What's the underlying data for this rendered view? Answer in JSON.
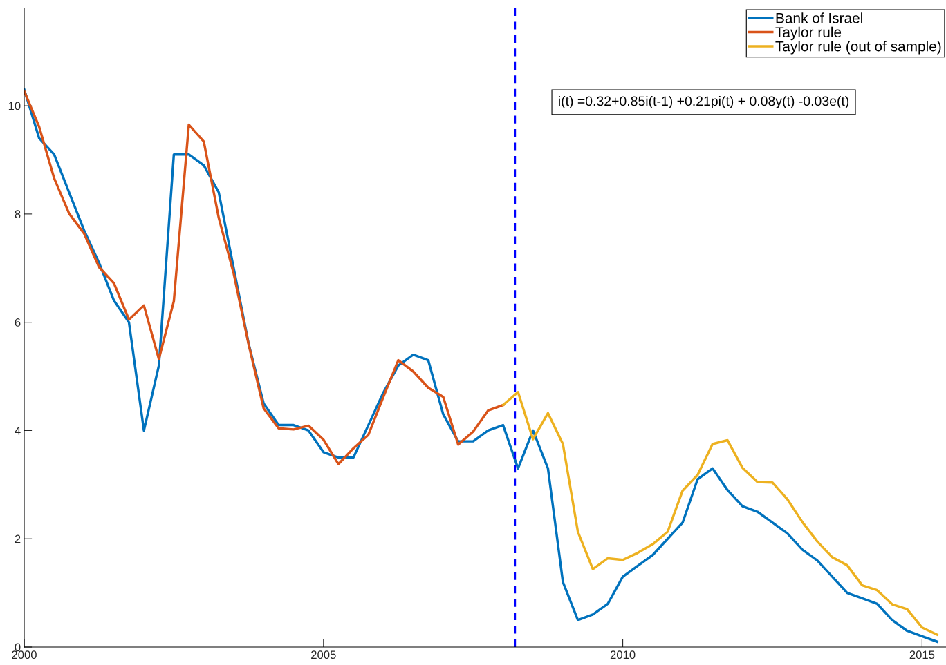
{
  "chart_data": {
    "type": "line",
    "xlim": [
      2000,
      2015.4
    ],
    "ylim": [
      0,
      11.8
    ],
    "xticks": [
      2000,
      2005,
      2010,
      2015
    ],
    "yticks": [
      0,
      2,
      4,
      6,
      8,
      10
    ],
    "grid": false,
    "legend": "top right",
    "line_style": "solid",
    "marker": "none",
    "series": [
      {
        "name": "Bank of Israel",
        "color": "#0072bd",
        "x": [
          2000,
          2000.25,
          2000.5,
          2000.75,
          2001,
          2001.25,
          2001.5,
          2001.75,
          2002,
          2002.25,
          2002.5,
          2002.75,
          2003,
          2003.25,
          2003.5,
          2003.75,
          2004,
          2004.25,
          2004.5,
          2004.75,
          2005,
          2005.25,
          2005.5,
          2005.75,
          2006,
          2006.25,
          2006.5,
          2006.75,
          2007,
          2007.25,
          2007.5,
          2007.75,
          2008,
          2008.25,
          2008.5,
          2008.75,
          2009,
          2009.25,
          2009.5,
          2009.75,
          2010,
          2010.25,
          2010.5,
          2010.75,
          2011,
          2011.25,
          2011.5,
          2011.75,
          2012,
          2012.25,
          2012.5,
          2012.75,
          2013,
          2013.25,
          2013.5,
          2013.75,
          2014,
          2014.25,
          2014.5,
          2014.75,
          2015,
          2015.25
        ],
        "values": [
          10.3,
          9.4,
          9.1,
          8.4,
          7.7,
          7.1,
          6.4,
          6.0,
          4.0,
          5.2,
          9.1,
          9.1,
          8.9,
          8.4,
          7.0,
          5.6,
          4.5,
          4.1,
          4.1,
          4.0,
          3.6,
          3.5,
          3.5,
          4.1,
          4.7,
          5.2,
          5.4,
          5.3,
          4.3,
          3.8,
          3.8,
          4.0,
          4.1,
          3.3,
          4.0,
          3.3,
          1.2,
          0.5,
          0.6,
          0.8,
          1.3,
          1.5,
          1.7,
          2.0,
          2.3,
          3.1,
          3.3,
          2.9,
          2.6,
          2.5,
          2.3,
          2.1,
          1.8,
          1.6,
          1.3,
          1.0,
          0.9,
          0.8,
          0.5,
          0.3,
          0.2,
          0.1
        ]
      },
      {
        "name": "Taylor rule",
        "color": "#d95319",
        "x": [
          2000,
          2000.25,
          2000.5,
          2000.75,
          2001,
          2001.25,
          2001.5,
          2001.75,
          2002,
          2002.25,
          2002.5,
          2002.75,
          2003,
          2003.25,
          2003.5,
          2003.75,
          2004,
          2004.25,
          2004.5,
          2004.75,
          2005,
          2005.25,
          2005.5,
          2005.75,
          2006,
          2006.25,
          2006.5,
          2006.75,
          2007,
          2007.25,
          2007.5,
          2007.75,
          2008
        ],
        "values": [
          10.27,
          9.61,
          8.66,
          8.01,
          7.64,
          7.02,
          6.72,
          6.05,
          6.31,
          5.32,
          6.39,
          9.65,
          9.34,
          7.93,
          6.9,
          5.59,
          4.41,
          4.04,
          4.02,
          4.09,
          3.83,
          3.38,
          3.67,
          3.92,
          4.62,
          5.3,
          5.09,
          4.79,
          4.62,
          3.74,
          3.98,
          4.37,
          4.47
        ]
      },
      {
        "name": "Taylor rule (out of sample)",
        "color": "#edb120",
        "x": [
          2008,
          2008.25,
          2008.5,
          2008.75,
          2009,
          2009.25,
          2009.5,
          2009.75,
          2010,
          2010.25,
          2010.5,
          2010.75,
          2011,
          2011.25,
          2011.5,
          2011.75,
          2012,
          2012.25,
          2012.5,
          2012.75,
          2013,
          2013.25,
          2013.5,
          2013.75,
          2014,
          2014.25,
          2014.5,
          2014.75,
          2015,
          2015.25
        ],
        "values": [
          4.47,
          4.71,
          3.84,
          4.32,
          3.75,
          2.13,
          1.44,
          1.64,
          1.61,
          1.74,
          1.9,
          2.13,
          2.89,
          3.18,
          3.75,
          3.82,
          3.31,
          3.05,
          3.04,
          2.73,
          2.31,
          1.95,
          1.66,
          1.51,
          1.14,
          1.05,
          0.79,
          0.7,
          0.36,
          0.23
        ]
      }
    ],
    "ref_lines": [
      {
        "axis": "x",
        "value": 2008.2,
        "color": "#0000ff",
        "line_style": "dashed"
      }
    ],
    "annotations": [
      "i(t) =0.32+0.85i(t-1) +0.21pi(t) + 0.08y(t) -0.03e(t)"
    ]
  }
}
